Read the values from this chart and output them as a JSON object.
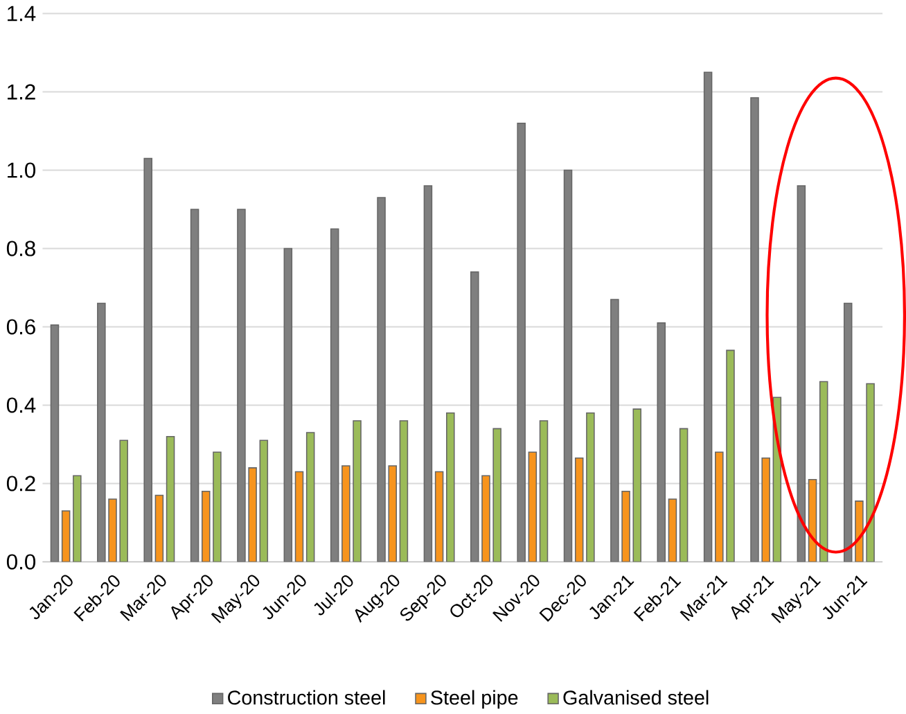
{
  "chart_data": {
    "type": "bar",
    "categories": [
      "Jan-20",
      "Feb-20",
      "Mar-20",
      "Apr-20",
      "May-20",
      "Jun-20",
      "Jul-20",
      "Aug-20",
      "Sep-20",
      "Oct-20",
      "Nov-20",
      "Dec-20",
      "Jan-21",
      "Feb-21",
      "Mar-21",
      "Apr-21",
      "May-21",
      "Jun-21"
    ],
    "series": [
      {
        "name": "Construction steel",
        "color": "#7f7f7f",
        "values": [
          0.605,
          0.66,
          1.03,
          0.9,
          0.9,
          0.8,
          0.85,
          0.93,
          0.96,
          0.74,
          1.12,
          1.0,
          0.67,
          0.61,
          1.25,
          1.185,
          0.96,
          0.66
        ]
      },
      {
        "name": "Steel pipe",
        "color": "#f7941d",
        "values": [
          0.13,
          0.16,
          0.17,
          0.18,
          0.24,
          0.23,
          0.245,
          0.245,
          0.23,
          0.22,
          0.28,
          0.265,
          0.18,
          0.16,
          0.28,
          0.265,
          0.21,
          0.155
        ]
      },
      {
        "name": "Galvanised steel",
        "color": "#9bbb59",
        "values": [
          0.22,
          0.31,
          0.32,
          0.28,
          0.31,
          0.33,
          0.36,
          0.36,
          0.38,
          0.34,
          0.36,
          0.38,
          0.39,
          0.34,
          0.54,
          0.42,
          0.46,
          0.455
        ]
      }
    ],
    "ylim": [
      0,
      1.4
    ],
    "yticks": [
      {
        "value": 0,
        "label": "0.0"
      },
      0.2,
      0.4,
      0.6,
      0.8,
      {
        "value": 1.0,
        "label": "1.0"
      },
      1.2,
      1.4
    ],
    "grid": "y",
    "legend": "bottom"
  }
}
